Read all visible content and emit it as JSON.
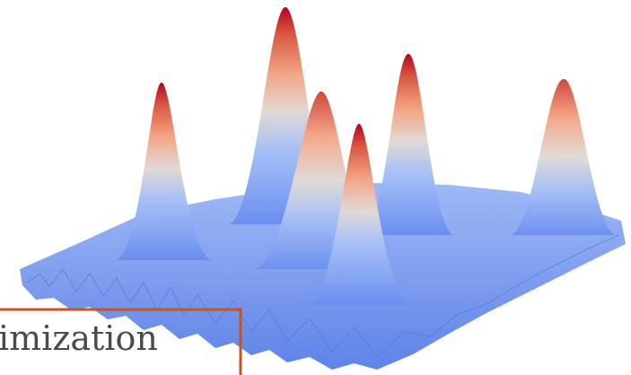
{
  "caption": "imization"
}
